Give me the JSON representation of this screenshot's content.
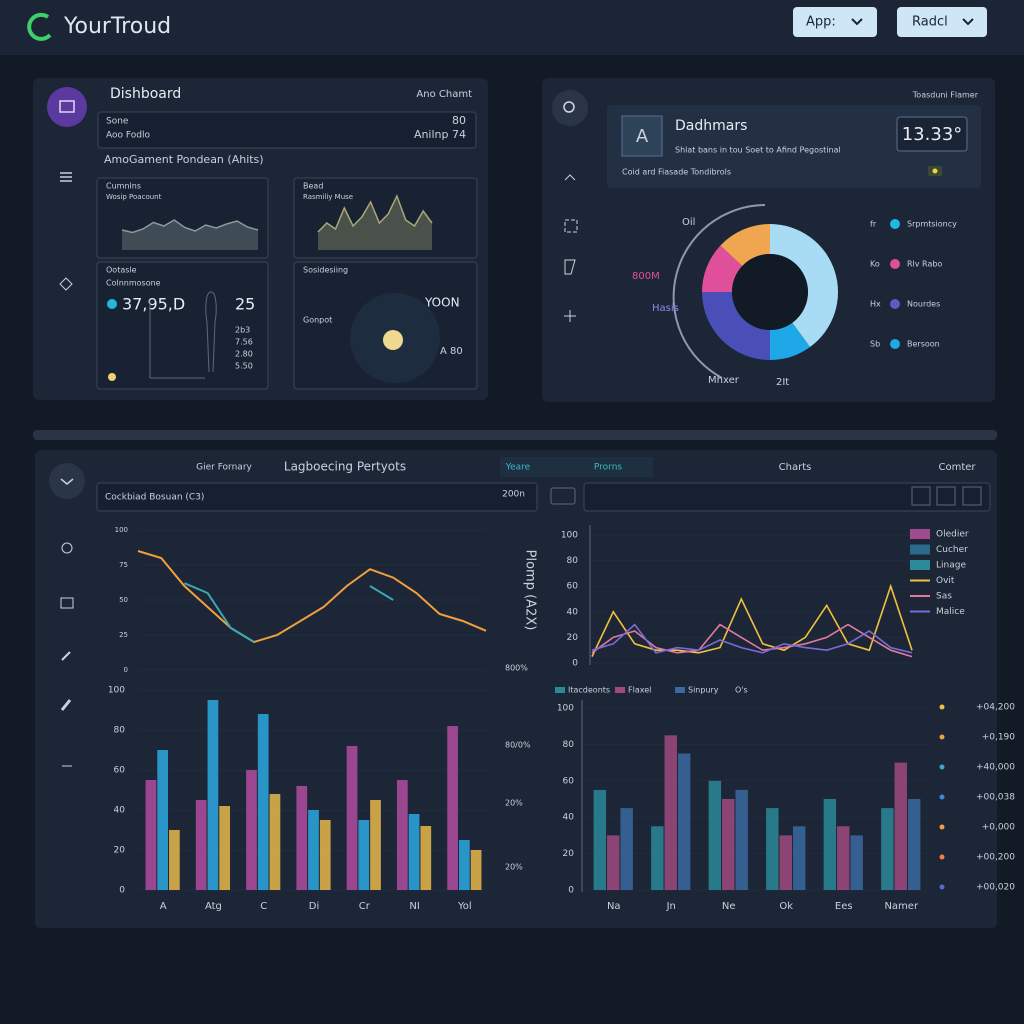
{
  "header": {
    "logo": "YourTroud",
    "buttons": [
      "App:",
      "Radcl"
    ]
  },
  "overview": {
    "title": "Dishboard",
    "link": "Ano Chamt",
    "summary": [
      [
        "Sone",
        "80"
      ],
      [
        "Aoo Fodlo",
        "Anilnp 74"
      ]
    ],
    "subtitle": "AmoGament Pondean (Ahits)",
    "cards": [
      {
        "title": "Cumnlns",
        "subtitle": "Wosip Poacount",
        "color": "#8a9a9a",
        "values": [
          40,
          35,
          42,
          55,
          48,
          60,
          45,
          38,
          50,
          44,
          52,
          58,
          46,
          40
        ],
        "ylim": [
          0,
          100
        ]
      },
      {
        "title": "Bead",
        "subtitle": "Rasmiliy Muse",
        "color": "#a8a878",
        "values": [
          30,
          45,
          35,
          70,
          40,
          55,
          80,
          45,
          60,
          90,
          50,
          40,
          65,
          45
        ],
        "ylim": [
          0,
          100
        ]
      },
      {
        "title": "Ootasle",
        "subtitle": "Colnnmosone",
        "metric": "37,95,D",
        "side": "25",
        "rows": [
          "2b3",
          "7.56",
          "2.80",
          "5.50"
        ]
      },
      {
        "title": "Sosidesiing",
        "subtitle": "Gonpot",
        "metric": "YOON",
        "side": "A 80"
      }
    ]
  },
  "status": {
    "caption": "Toasduni Flamer",
    "badge": "A",
    "title": "Dadhmars",
    "desc": "Shlat bans in tou Soet to Afind Pegostinal",
    "note": "Coid ard Fiasade Tondibrols",
    "value": "13.33°",
    "donut": {
      "segments": [
        {
          "color": "#a8dcf5",
          "value": 40
        },
        {
          "color": "#1fa8e8",
          "value": 10
        },
        {
          "color": "#4a4fb8",
          "value": 25
        },
        {
          "color": "#e0509a",
          "value": 12
        },
        {
          "color": "#f0a550",
          "value": 13
        }
      ],
      "labels": [
        "Oil",
        "800M",
        "Hasis",
        "Mhxer",
        "2It"
      ]
    },
    "legend": [
      {
        "key": "fr",
        "label": "Srpmtsioncy",
        "color": "#20b8e0"
      },
      {
        "key": "Ko",
        "label": "Rlv Rabo",
        "color": "#e0509a"
      },
      {
        "key": "Hx",
        "label": "Nourdes",
        "color": "#5a5ac8"
      },
      {
        "key": "Sb",
        "label": "Bersoon",
        "color": "#20a8e0"
      }
    ]
  },
  "analytics": {
    "tabs": [
      "Gier Fornary",
      "Lagboecing Pertyots",
      "Yeare",
      "Prorns",
      "Charts",
      "Comter"
    ],
    "toolbar": "Cockbiad Bosuan (C3)",
    "toolbar_value": "200n",
    "axis_title": "Plomp (A2X)",
    "left_line": {
      "ylim": [
        0,
        100
      ],
      "yticks": [
        0,
        25,
        50,
        75,
        100
      ],
      "series": [
        {
          "color": "#f0a03c",
          "values": [
            85,
            80,
            60,
            45,
            30,
            20,
            25,
            35,
            45,
            60,
            72,
            66,
            55,
            40,
            35,
            28
          ]
        },
        {
          "color": "#3aa8b8",
          "values": [
            null,
            null,
            62,
            55,
            30,
            20,
            null,
            null,
            null,
            null,
            60,
            50,
            null,
            null,
            null,
            null
          ]
        }
      ]
    },
    "right_line": {
      "ylim": [
        0,
        100
      ],
      "yticks": [
        0,
        20,
        40,
        60,
        80,
        100
      ],
      "series": [
        {
          "name": "Ovit",
          "color": "#f0c040",
          "values": [
            5,
            40,
            15,
            10,
            10,
            8,
            12,
            50,
            15,
            10,
            20,
            45,
            15,
            10,
            60,
            10
          ]
        },
        {
          "name": "Sas",
          "color": "#e07aa0",
          "values": [
            8,
            20,
            25,
            12,
            8,
            10,
            30,
            20,
            10,
            12,
            15,
            20,
            30,
            20,
            10,
            5
          ]
        },
        {
          "name": "Malice",
          "color": "#7a6ad8",
          "values": [
            10,
            15,
            30,
            8,
            12,
            10,
            18,
            12,
            8,
            15,
            12,
            10,
            15,
            25,
            12,
            8
          ]
        }
      ],
      "legend_extra": [
        {
          "name": "Oledier",
          "color": "#a04a90"
        },
        {
          "name": "Cucher",
          "color": "#2a6a8a"
        },
        {
          "name": "Linage",
          "color": "#2a8a9a"
        }
      ]
    },
    "left_bars": {
      "categories": [
        "A",
        "Atg",
        "C",
        "Di",
        "Cr",
        "NI",
        "Yol"
      ],
      "ylim": [
        0,
        100
      ],
      "yticks": [
        0,
        20,
        40,
        60,
        80,
        100
      ],
      "series": [
        {
          "color": "#b04ca0",
          "values": [
            55,
            45,
            60,
            52,
            72,
            55,
            82
          ]
        },
        {
          "color": "#2aa8e0",
          "values": [
            70,
            95,
            88,
            40,
            35,
            38,
            25
          ]
        },
        {
          "color": "#e8b84a",
          "values": [
            30,
            42,
            48,
            35,
            45,
            32,
            20
          ]
        }
      ],
      "side_labels": [
        "800%",
        "80/0%",
        "20%",
        "20%"
      ]
    },
    "right_bars": {
      "categories": [
        "Na",
        "Jn",
        "Ne",
        "Ok",
        "Ees",
        "Namer"
      ],
      "ylim": [
        0,
        100
      ],
      "yticks": [
        0,
        20,
        40,
        60,
        80,
        100
      ],
      "series": [
        {
          "name": "Itacdeonts",
          "color": "#2a8a9a",
          "values": [
            55,
            35,
            60,
            45,
            50,
            45
          ]
        },
        {
          "name": "Flaxel",
          "color": "#a04a80",
          "values": [
            30,
            85,
            50,
            30,
            35,
            70
          ]
        },
        {
          "name": "Sinpury",
          "color": "#3a6aa0",
          "values": [
            45,
            75,
            55,
            35,
            30,
            50
          ]
        }
      ],
      "legend_extra": "O's",
      "side_labels": [
        "+04,200",
        "+0,190",
        "+40,000",
        "+00,038",
        "+0,000",
        "+00,200",
        "+00,020"
      ]
    }
  }
}
